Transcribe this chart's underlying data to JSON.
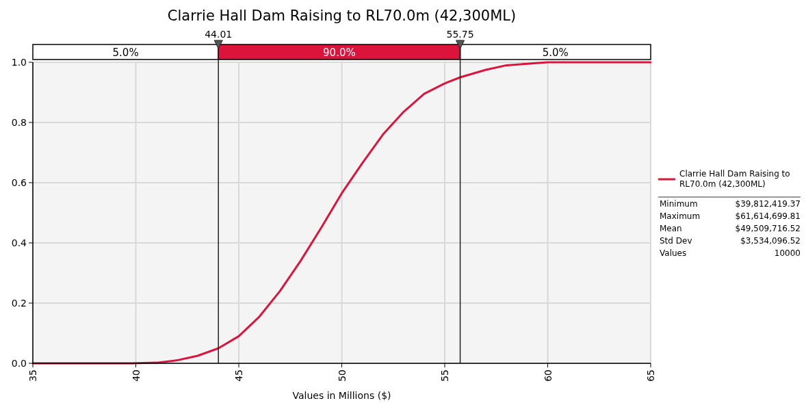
{
  "chart_data": {
    "type": "line",
    "title": "Clarrie Hall Dam Raising to RL70.0m (42,300ML)",
    "xlabel": "Values in Millions ($)",
    "series": [
      {
        "name": "Clarrie Hall Dam Raising to RL70.0m (42,300ML)",
        "color": "#dc143c",
        "x": [
          35,
          39.8,
          41,
          42,
          43,
          44.01,
          45,
          46,
          47,
          48,
          49,
          50,
          51,
          52,
          53,
          54,
          55,
          55.75,
          57,
          58,
          59,
          60,
          61.6,
          65
        ],
        "values": [
          0,
          0,
          0.002,
          0.01,
          0.025,
          0.05,
          0.09,
          0.155,
          0.24,
          0.34,
          0.45,
          0.565,
          0.665,
          0.76,
          0.835,
          0.895,
          0.93,
          0.95,
          0.975,
          0.99,
          0.995,
          1.0,
          1.0,
          1.0
        ]
      }
    ],
    "xlim": [
      35,
      65
    ],
    "xticks": [
      35,
      40,
      45,
      50,
      55,
      60,
      65
    ],
    "ylim": [
      0,
      1
    ],
    "yticks": [
      {
        "value": 0,
        "label": "0.0"
      },
      {
        "value": 0.2,
        "label": "0.2"
      },
      {
        "value": 0.4,
        "label": "0.4"
      },
      {
        "value": 0.6,
        "label": "0.6"
      },
      {
        "value": 0.8,
        "label": "0.8"
      },
      {
        "value": 1,
        "label": "1.0"
      }
    ],
    "grid": true,
    "legend": "right",
    "marker": "none",
    "line_style": "solid",
    "ref_lines": [
      {
        "axis": "x",
        "value": 44.01,
        "label": "44.01"
      },
      {
        "axis": "x",
        "value": 55.75,
        "label": "55.75"
      }
    ],
    "annotations": [
      "5.0%",
      "90.0%",
      "5.0%",
      "Minimum",
      "$39,812,419.37",
      "Maximum",
      "$61,614,699.81",
      "Mean",
      "$49,509,716.52",
      "Std Dev",
      "$3,534,096.52",
      "Values",
      "10000"
    ]
  }
}
